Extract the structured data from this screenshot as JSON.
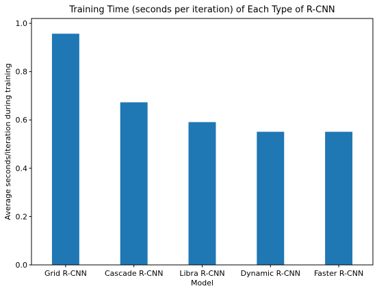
{
  "chart_data": {
    "type": "bar",
    "title": "Training Time (seconds per iteration) of Each Type of R-CNN",
    "xlabel": "Model",
    "ylabel": "Average seconds/iteration during training",
    "categories": [
      "Grid R-CNN",
      "Cascade R-CNN",
      "Libra R-CNN",
      "Dynamic R-CNN",
      "Faster R-CNN"
    ],
    "values": [
      0.957,
      0.673,
      0.591,
      0.551,
      0.551
    ],
    "ylim": [
      0,
      1.02
    ],
    "yticks": [
      0.0,
      0.2,
      0.4,
      0.6,
      0.8,
      1.0
    ],
    "ytick_labels": [
      "0.0",
      "0.2",
      "0.4",
      "0.6",
      "0.8",
      "1.0"
    ],
    "grid": false,
    "bar_color": "#1f77b4"
  }
}
